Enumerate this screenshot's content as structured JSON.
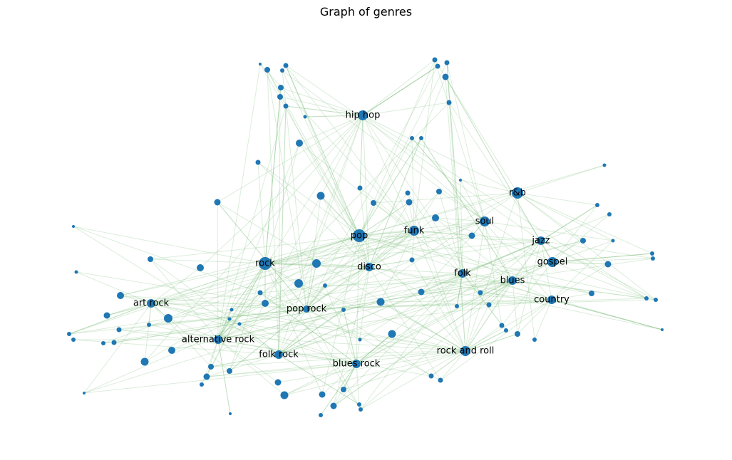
{
  "title": "Graph of genres",
  "colors": {
    "node": "#1f77b4",
    "edge": "#7fbf7f",
    "background": "#ffffff"
  },
  "labels": {
    "hip_hop": "hip hop",
    "rnb": "r&b",
    "pop": "pop",
    "funk": "funk",
    "soul": "soul",
    "jazz": "jazz",
    "rock": "rock",
    "disco": "disco",
    "gospel": "gospel",
    "folk": "folk",
    "blues": "blues",
    "art_rock": "art rock",
    "pop_rock": "pop rock",
    "country": "country",
    "alternative_rock": "alternative rock",
    "folk_rock": "folk rock",
    "rock_and_roll": "rock and roll",
    "blues_rock": "blues rock"
  }
}
